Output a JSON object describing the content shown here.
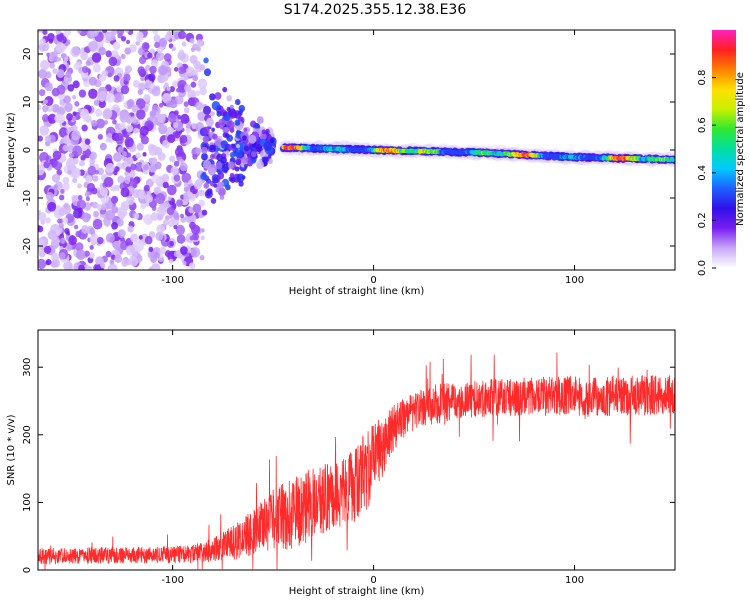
{
  "title": "S174.2025.355.12.38.E36",
  "colors": {
    "snr_line": "#ff2a2a",
    "axes": "#000000",
    "background": "#ffffff"
  },
  "chart_data": [
    {
      "type": "heatmap",
      "name": "spectrogram",
      "xlabel": "Height of straight line (km)",
      "ylabel": "Frequency (Hz)",
      "xlim": [
        -167,
        150
      ],
      "ylim": [
        -25,
        25
      ],
      "xticks": [
        -100,
        0,
        100
      ],
      "xtick_labels": [
        "-100",
        "0",
        "100"
      ],
      "yticks": [
        -20,
        -10,
        0,
        10,
        20
      ],
      "ytick_labels": [
        "-20",
        "-10",
        "0",
        "10",
        "20"
      ],
      "description_of_content": {
        "noise_region_x": [
          -167,
          -85
        ],
        "transition_region_x": [
          -85,
          -50
        ],
        "signal_band_x": [
          -45,
          150
        ],
        "signal_band_frequency_hz_at_x": [
          [
            -45,
            0.5
          ],
          [
            0,
            0
          ],
          [
            50,
            -0.5
          ],
          [
            100,
            -1.5
          ],
          [
            150,
            -2
          ]
        ]
      },
      "colorbar": {
        "label": "Normalized spectral amplitude",
        "range": [
          0,
          1
        ],
        "ticks": [
          0.0,
          0.2,
          0.4,
          0.6,
          0.8
        ],
        "tick_labels": [
          "0.0",
          "0.2",
          "0.4",
          "0.6",
          "0.8"
        ],
        "colormap": [
          "#ffffff",
          "#c8a8f8",
          "#7a1ff0",
          "#3010e8",
          "#1e60ff",
          "#00c8ff",
          "#00e0a0",
          "#30e830",
          "#c8f000",
          "#ffe000",
          "#ff8000",
          "#ff2020",
          "#ff20c0"
        ]
      }
    },
    {
      "type": "line",
      "name": "snr",
      "xlabel": "Height of straight line (km)",
      "ylabel": "SNR (10 * v/v)",
      "xlim": [
        -167,
        150
      ],
      "ylim": [
        0,
        355
      ],
      "xticks": [
        -100,
        0,
        100
      ],
      "xtick_labels": [
        "-100",
        "0",
        "100"
      ],
      "yticks": [
        0,
        100,
        200,
        300
      ],
      "ytick_labels": [
        "0",
        "100",
        "200",
        "300"
      ],
      "series": [
        {
          "name": "SNR",
          "x": [
            -167,
            -150,
            -130,
            -110,
            -90,
            -80,
            -70,
            -60,
            -50,
            -40,
            -30,
            -20,
            -10,
            -5,
            0,
            5,
            10,
            15,
            20,
            30,
            40,
            50,
            60,
            70,
            80,
            90,
            100,
            110,
            120,
            130,
            140,
            150
          ],
          "y": [
            20,
            21,
            22,
            22,
            24,
            30,
            40,
            55,
            75,
            85,
            100,
            110,
            125,
            140,
            160,
            185,
            210,
            225,
            235,
            245,
            250,
            252,
            255,
            255,
            258,
            258,
            258,
            255,
            258,
            258,
            258,
            258
          ],
          "noise_amplitude": [
            12,
            12,
            12,
            12,
            14,
            18,
            25,
            35,
            45,
            55,
            55,
            50,
            55,
            60,
            60,
            45,
            35,
            30,
            30,
            30,
            28,
            28,
            28,
            28,
            28,
            28,
            30,
            30,
            30,
            30,
            30,
            30
          ]
        }
      ]
    }
  ]
}
